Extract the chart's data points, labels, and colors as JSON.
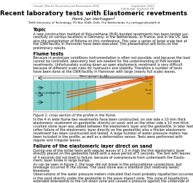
{
  "title": "Recent laboratory tests with Elastomeric revetments",
  "author": "Henk Jan Verhagen¹",
  "affiliation": "¹Delft University of Technology, PO Box 5048, Delft, The Netherlands, h.j.verhagen@tudelft.nl",
  "header_left": "Coastal, Marine Structures and Restoration 2023",
  "header_right_line1": "September 2023",
  "header_right_line2": "Edinburgh, Scotland, UK",
  "topic_heading": "Topic",
  "topic_lines": [
    "A new construction method of Polyurethane (PUR) bonded revetments has been tested suc-",
    "cessfully on various locations in Germany, in the Netherlands, in France, and in the US. See",
    "also the presentation of Bijlsma on this conference. This year a series of large scale test at",
    "the GWK-facility in Hannover have been executed. This presentation will focus on the",
    "preliminary results."
  ],
  "flume_heading": "Flume tests",
  "flume_lines": [
    "Because in prototype conditions instrumentation is often not possible, and because the load",
    "cannot be controlled, laboratory test are needed for the understanding of PUR bonded",
    "revetments. Unfortunately scaling down an open elastomeric revetment is very difficult",
    "because of different scale rules for hydraulics and stability. Therefore a number of tests",
    "have been done at the GWK-facility in Hannover with large (nearly full scale) waves."
  ],
  "figure_caption": "Figure 1: cross section of the profile in the flume",
  "fig_desc_lines": [
    "In the 4 m wide flume two revetments have been constructed, on one side a 10 mm thick",
    "elastomeric revetment on geotextile, directly on sand, and on the other side a 10 mm thick",
    "crushed stone layer was added between the elastomeric layer and the geotextile. In later test",
    "(after failure of the elastomeric layer directly on the geotextile) also a thicker elastomeric",
    "revetment has been constructed and tested. A large number of water pressure meters has",
    "been included in the profile, as well as a deformation sensor. Tests were performed with",
    "regular and irregular waves."
  ],
  "failure_heading": "Failure of the elastomeric layer direct on sand",
  "failure_lines": [
    "During one of the initial tests with regular waves of 1.3 m high the thin elastomeric layer",
    "directly placed on the geotextile failed with a wave period of 5 seconds. The test with waves",
    "of 4 seconds did not lead to failure, because of overpressure from underneath the Elasto-",
    "meric layer broke in large bumps.",
    "As can be seen in figure 2, the layer did not break in the polyurethane connections, but",
    "breakage occurred in the stones. The used stone was a standard (but relatively weak)",
    "limestone.",
    "Observations of the water pressure meters indicated that most probably liquefaction occurred",
    "in the sand directly under the geotextile in the wave impact zone. This zone of liquefaction",
    "extended downwards to the run-down zone and caused a pressure against the underside of"
  ],
  "bg": "#ffffff",
  "tc": "#000000",
  "hc": "#666666",
  "water_color": "#7ECECA",
  "sand_color": "#DAA020",
  "revetment_color": "#E05000",
  "diagram_bg": "#F2F2F2",
  "diagram_border": "#888888"
}
